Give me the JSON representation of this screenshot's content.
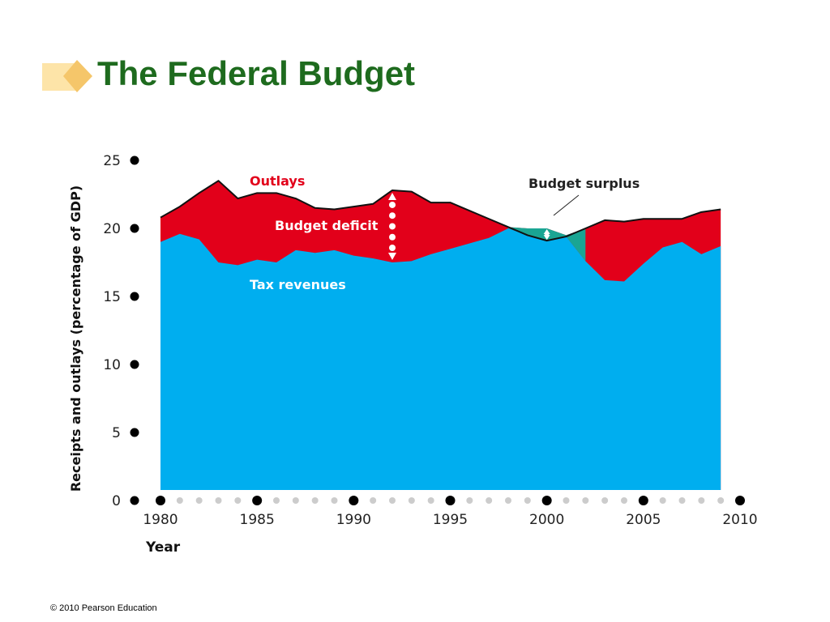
{
  "slide": {
    "title": "The Federal Budget",
    "footer": "© 2010 Pearson Education"
  },
  "colors": {
    "title": "#1e6b1e",
    "tax_revenues": "#00aeef",
    "outlays_deficit": "#e2001a",
    "surplus": "#1aa593",
    "ornament_light": "#fde4a8",
    "ornament_dark": "#f5c66a"
  },
  "chart_data": {
    "type": "area",
    "xlabel": "Year",
    "ylabel": "Receipts and outlays (percentage of GDP)",
    "xlim": [
      1980,
      2010
    ],
    "ylim": [
      0,
      25
    ],
    "x_ticks": [
      "1980",
      "1985",
      "1990",
      "1995",
      "2000",
      "2005",
      "2010"
    ],
    "y_ticks": [
      "0",
      "5",
      "10",
      "15",
      "20",
      "25"
    ],
    "x": [
      1980,
      1981,
      1982,
      1983,
      1984,
      1985,
      1986,
      1987,
      1988,
      1989,
      1990,
      1991,
      1992,
      1993,
      1994,
      1995,
      1996,
      1997,
      1998,
      1999,
      2000,
      2001,
      2002,
      2003,
      2004,
      2005,
      2006,
      2007,
      2008,
      2009
    ],
    "series": [
      {
        "name": "Tax revenues",
        "values": [
          19.0,
          19.6,
          19.2,
          17.5,
          17.3,
          17.7,
          17.5,
          18.4,
          18.2,
          18.4,
          18.0,
          17.8,
          17.5,
          17.6,
          18.1,
          18.5,
          18.9,
          19.3,
          20.0,
          20.0,
          20.0,
          19.5,
          17.6,
          16.2,
          16.1,
          17.4,
          18.6,
          19.0,
          18.1,
          18.7
        ]
      },
      {
        "name": "Outlays",
        "values": [
          20.8,
          21.6,
          22.6,
          23.5,
          22.2,
          22.6,
          22.6,
          22.2,
          21.5,
          21.4,
          21.6,
          21.8,
          22.8,
          22.7,
          21.9,
          21.9,
          21.3,
          20.7,
          20.1,
          19.5,
          19.1,
          19.4,
          20.0,
          20.6,
          20.5,
          20.7,
          20.7,
          20.7,
          21.2,
          21.4
        ]
      }
    ],
    "annotations": [
      {
        "text": "Outlays",
        "color": "#e2001a"
      },
      {
        "text": "Budget deficit",
        "color": "#ffffff"
      },
      {
        "text": "Tax revenues",
        "color": "#ffffff"
      },
      {
        "text": "Budget surplus",
        "color": "#222222"
      }
    ],
    "grid": false,
    "legend": "none"
  }
}
